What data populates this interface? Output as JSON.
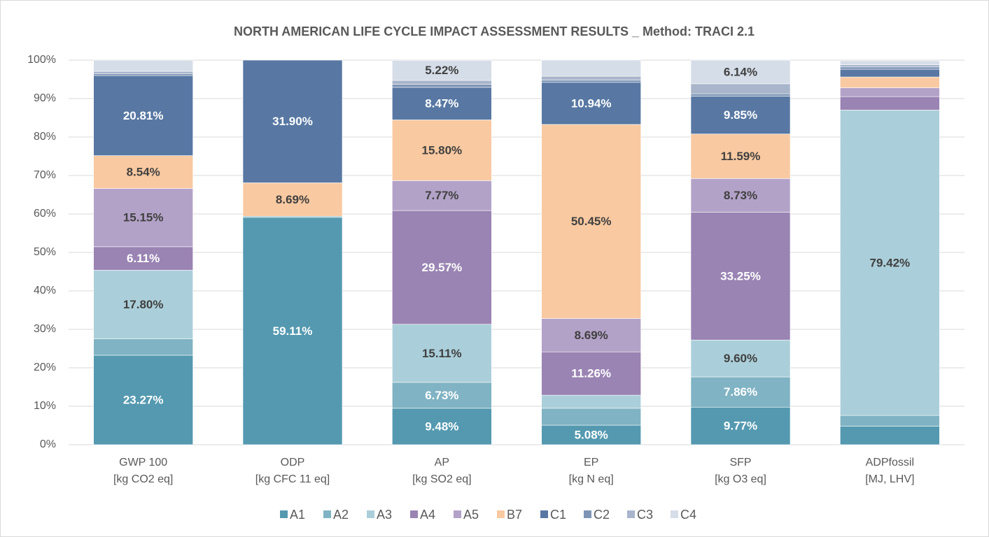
{
  "chart_data": {
    "type": "stacked_bar",
    "title": "NORTH AMERICAN LIFE CYCLE IMPACT ASSESSMENT RESULTS _ Method: TRACI 2.1",
    "categories": [
      [
        "GWP 100",
        "[kg CO2 eq]"
      ],
      [
        "ODP",
        "[kg CFC 11 eq]"
      ],
      [
        "AP",
        "[kg SO2 eq]"
      ],
      [
        "EP",
        "[kg N eq]"
      ],
      [
        "SFP",
        "[kg O3 eq]"
      ],
      [
        "ADPfossil",
        "[MJ, LHV]"
      ]
    ],
    "series": [
      {
        "name": "A1",
        "color": "#5499b0",
        "label_color": "#ffffff",
        "values": [
          23.27,
          59.11,
          9.48,
          5.08,
          9.77,
          4.8
        ],
        "value_labels": [
          "23.27%",
          "59.11%",
          "9.48%",
          "5.08%",
          "9.77%",
          null
        ]
      },
      {
        "name": "A2",
        "color": "#80b3c3",
        "label_color": "#ffffff",
        "values": [
          4.3,
          0.3,
          6.73,
          4.4,
          7.86,
          2.8
        ],
        "value_labels": [
          null,
          null,
          "6.73%",
          null,
          "7.86%",
          null
        ]
      },
      {
        "name": "A3",
        "color": "#abcfda",
        "label_color": "#404040",
        "values": [
          17.8,
          0,
          15.11,
          3.4,
          9.6,
          79.42
        ],
        "value_labels": [
          "17.80%",
          null,
          "15.11%",
          null,
          "9.60%",
          "79.42%"
        ]
      },
      {
        "name": "A4",
        "color": "#9a84b3",
        "label_color": "#ffffff",
        "values": [
          6.11,
          0,
          29.57,
          11.26,
          33.25,
          3.5
        ],
        "value_labels": [
          "6.11%",
          null,
          "29.57%",
          "11.26%",
          "33.25%",
          null
        ]
      },
      {
        "name": "A5",
        "color": "#b3a2c8",
        "label_color": "#404040",
        "values": [
          15.15,
          0,
          7.77,
          8.69,
          8.73,
          2.3
        ],
        "value_labels": [
          "15.15%",
          null,
          "7.77%",
          "8.69%",
          "8.73%",
          null
        ]
      },
      {
        "name": "B7",
        "color": "#f9c9a1",
        "label_color": "#404040",
        "values": [
          8.54,
          8.69,
          15.8,
          50.45,
          11.59,
          2.8
        ],
        "value_labels": [
          "8.54%",
          "8.69%",
          "15.80%",
          "50.45%",
          "11.59%",
          null
        ]
      },
      {
        "name": "C1",
        "color": "#5878a3",
        "label_color": "#ffffff",
        "values": [
          20.81,
          31.9,
          8.47,
          10.94,
          9.85,
          2.0
        ],
        "value_labels": [
          "20.81%",
          "31.90%",
          "8.47%",
          "10.94%",
          "9.85%",
          null
        ]
      },
      {
        "name": "C2",
        "color": "#7d94b6",
        "label_color": "#ffffff",
        "values": [
          0.5,
          0,
          0.8,
          0.6,
          0.6,
          0.6
        ],
        "value_labels": [
          null,
          null,
          null,
          null,
          null,
          null
        ]
      },
      {
        "name": "C3",
        "color": "#a8b5cb",
        "label_color": "#404040",
        "values": [
          0.6,
          0,
          1.0,
          1.0,
          2.6,
          0.6
        ],
        "value_labels": [
          null,
          null,
          null,
          null,
          null,
          null
        ]
      },
      {
        "name": "C4",
        "color": "#d5dde8",
        "label_color": "#404040",
        "values": [
          2.9,
          0,
          5.22,
          4.2,
          6.14,
          1.0
        ],
        "value_labels": [
          null,
          null,
          "5.22%",
          null,
          "6.14%",
          null
        ]
      }
    ],
    "ylim": [
      0,
      100
    ],
    "yticks": [
      {
        "value": 0,
        "label": "0%"
      },
      {
        "value": 10,
        "label": "10%"
      },
      {
        "value": 20,
        "label": "20%"
      },
      {
        "value": 30,
        "label": "30%"
      },
      {
        "value": 40,
        "label": "40%"
      },
      {
        "value": 50,
        "label": "50%"
      },
      {
        "value": 60,
        "label": "60%"
      },
      {
        "value": 70,
        "label": "70%"
      },
      {
        "value": 80,
        "label": "80%"
      },
      {
        "value": 90,
        "label": "90%"
      },
      {
        "value": 100,
        "label": "100%"
      }
    ],
    "grid": true,
    "legend": "bottom"
  }
}
